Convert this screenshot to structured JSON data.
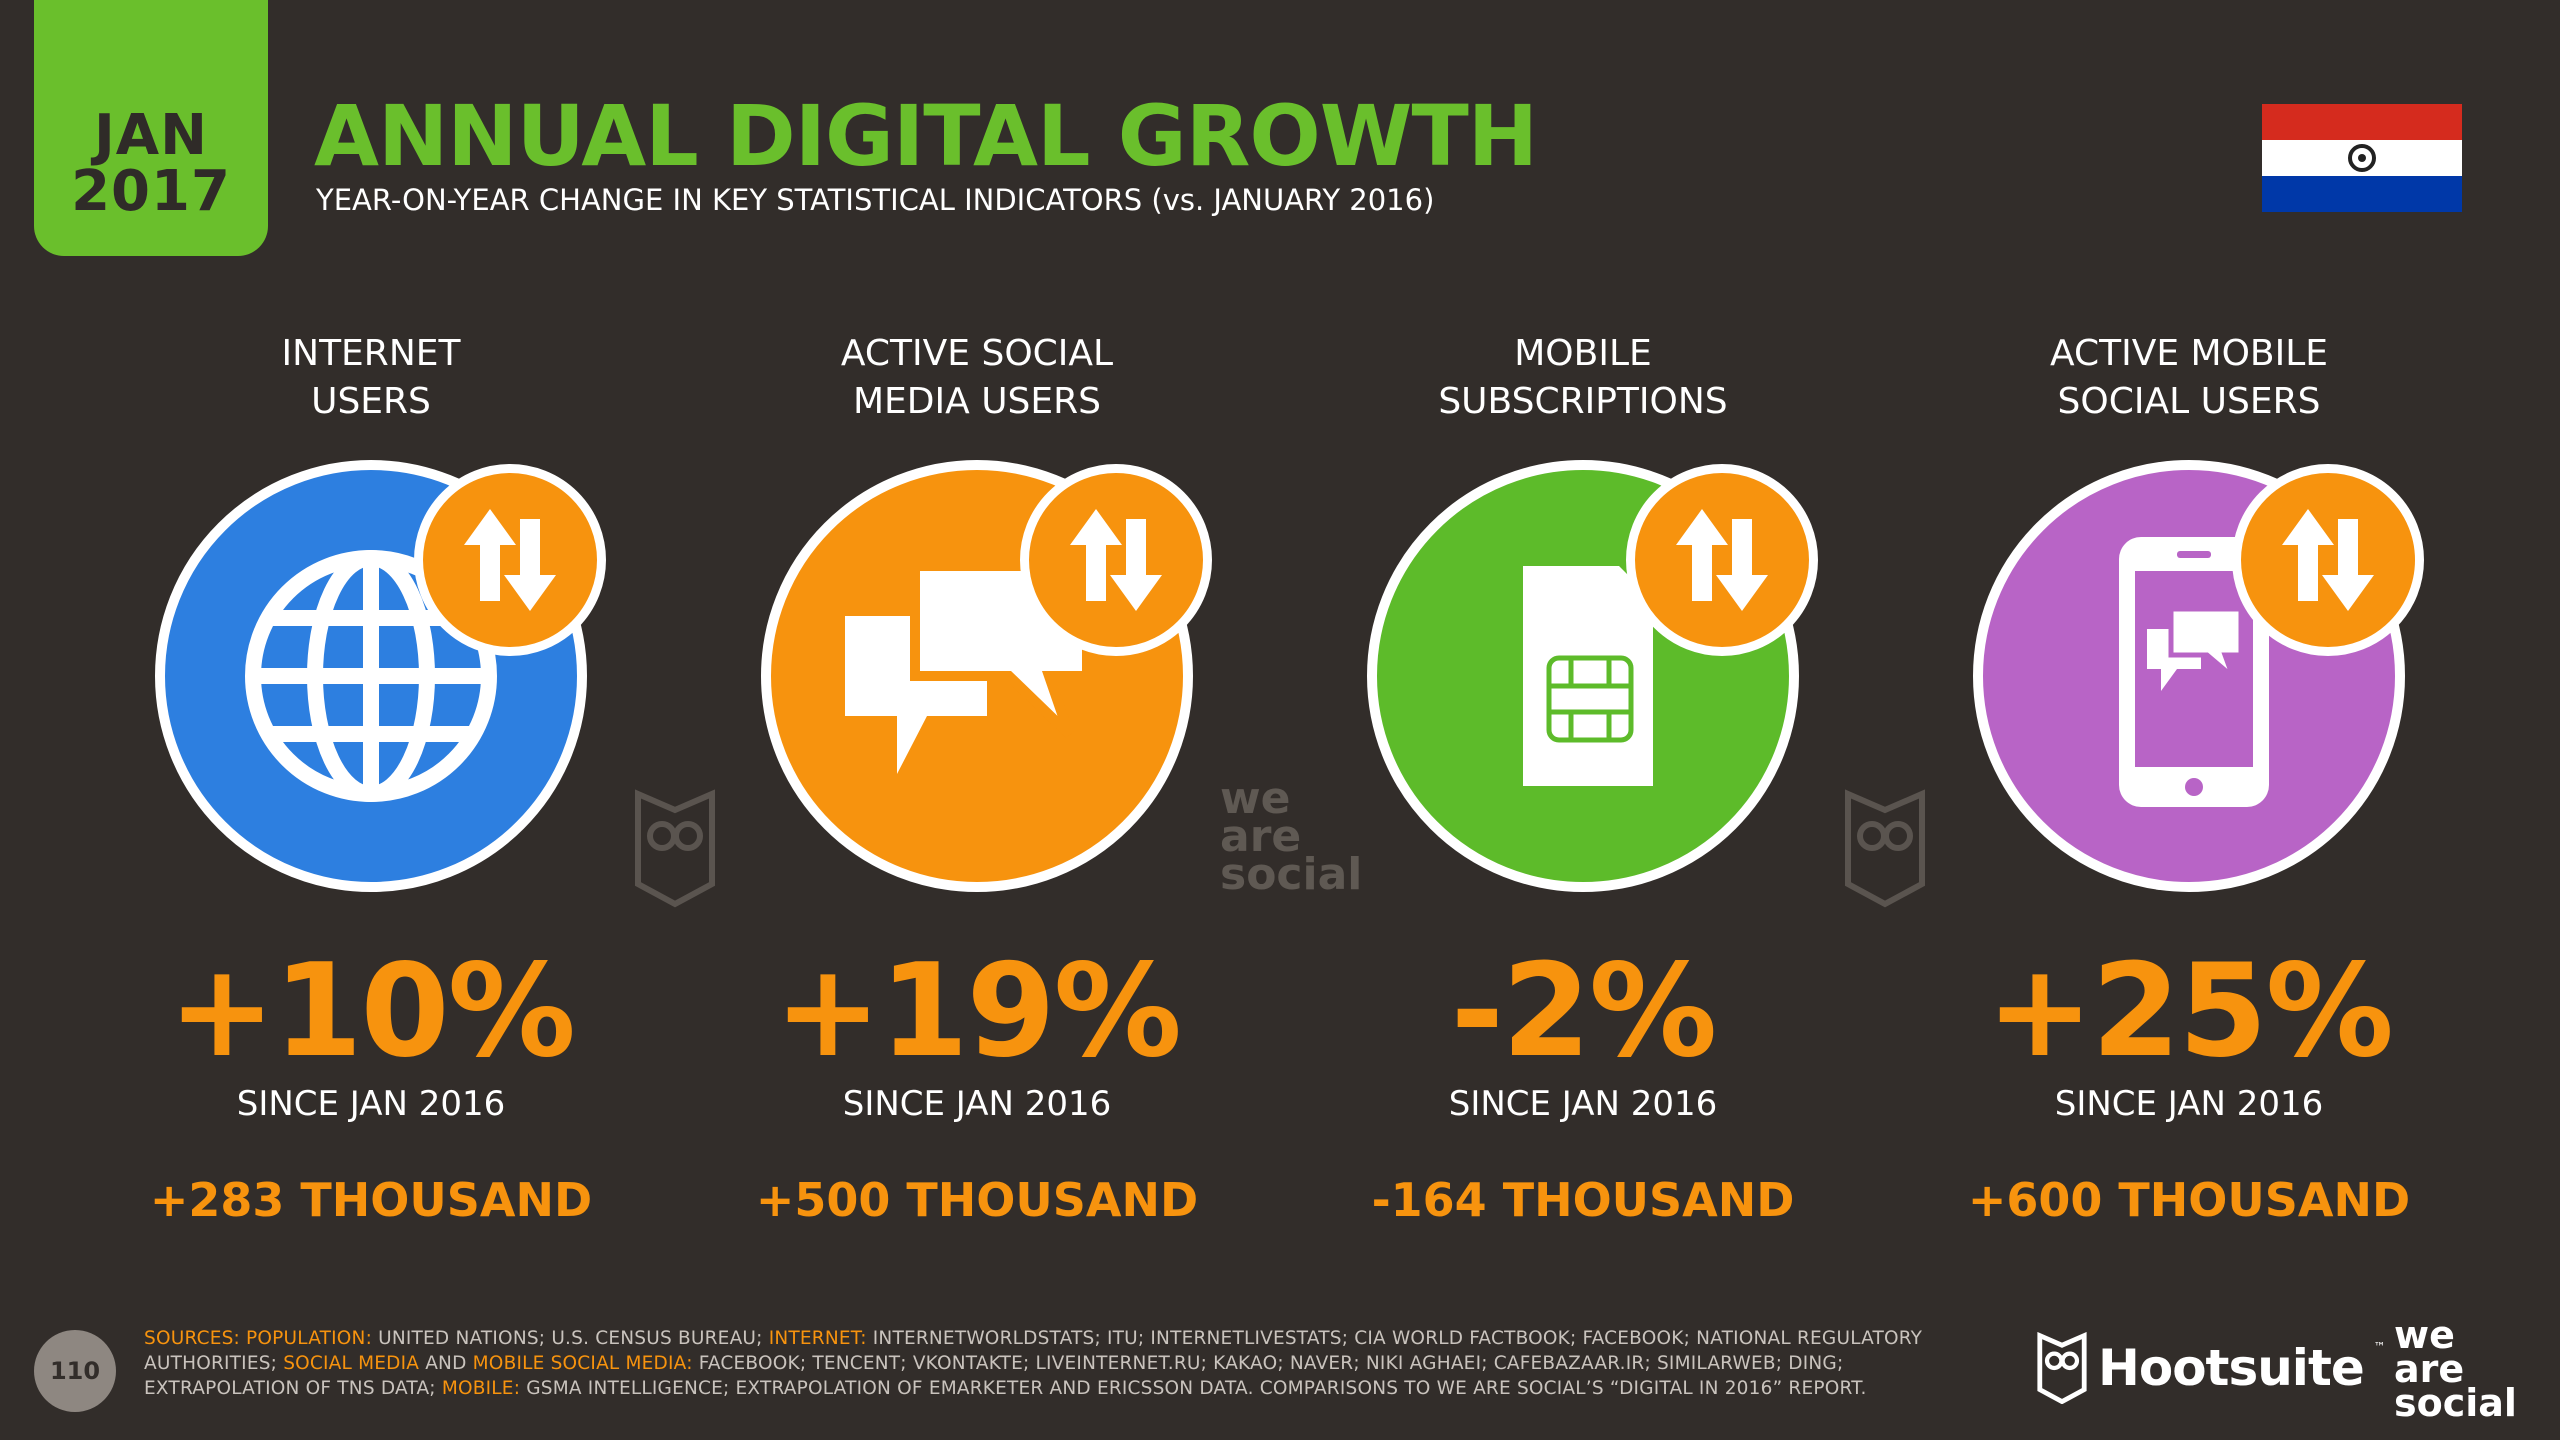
{
  "header": {
    "date_month": "JAN",
    "date_year": "2017",
    "title": "ANNUAL DIGITAL GROWTH",
    "subtitle": "YEAR-ON-YEAR CHANGE IN KEY STATISTICAL INDICATORS (vs. JANUARY 2016)",
    "flag": {
      "country": "Paraguay",
      "colors": [
        "#d52b1e",
        "#ffffff",
        "#0038a8"
      ]
    }
  },
  "stats": [
    {
      "label_line1": "INTERNET",
      "label_line2": "USERS",
      "icon": "globe-icon",
      "color": "#2d7fe0",
      "percent_change": "+10%",
      "since": "SINCE JAN 2016",
      "absolute_change": "+283 THOUSAND"
    },
    {
      "label_line1": "ACTIVE SOCIAL",
      "label_line2": "MEDIA USERS",
      "icon": "speech-bubbles-icon",
      "color": "#f7930e",
      "percent_change": "+19%",
      "since": "SINCE JAN 2016",
      "absolute_change": "+500 THOUSAND"
    },
    {
      "label_line1": "MOBILE",
      "label_line2": "SUBSCRIPTIONS",
      "icon": "sim-card-icon",
      "color": "#5dbb2a",
      "percent_change": "-2%",
      "since": "SINCE JAN 2016",
      "absolute_change": "-164 THOUSAND"
    },
    {
      "label_line1": "ACTIVE MOBILE",
      "label_line2": "SOCIAL USERS",
      "icon": "smartphone-chat-icon",
      "color": "#b864c6",
      "percent_change": "+25%",
      "since": "SINCE JAN 2016",
      "absolute_change": "+600 THOUSAND"
    }
  ],
  "watermark": {
    "l1": "we",
    "l2": "are",
    "l3": "social"
  },
  "footer": {
    "page_number": "110",
    "sources": [
      {
        "t": "SOURCES: ",
        "hl": true
      },
      {
        "t": "POPULATION: ",
        "hl": true
      },
      {
        "t": "UNITED NATIONS; U.S. CENSUS BUREAU; ",
        "hl": false
      },
      {
        "t": "INTERNET: ",
        "hl": true
      },
      {
        "t": "INTERNETWORLDSTATS; ITU; INTERNETLIVESTATS; CIA WORLD FACTBOOK; FACEBOOK; NATIONAL REGULATORY AUTHORITIES; ",
        "hl": false
      },
      {
        "t": "SOCIAL MEDIA",
        "hl": true
      },
      {
        "t": " AND ",
        "hl": false
      },
      {
        "t": "MOBILE SOCIAL MEDIA: ",
        "hl": true
      },
      {
        "t": "FACEBOOK; TENCENT; VKONTAKTE; LIVEINTERNET.RU; KAKAO; NAVER; NIKI AGHAEI; CAFEBAZAAR.IR; SIMILARWEB; DING; EXTRAPOLATION OF TNS DATA; ",
        "hl": false
      },
      {
        "t": "MOBILE: ",
        "hl": true
      },
      {
        "t": "GSMA INTELLIGENCE; EXTRAPOLATION OF EMARKETER AND ERICSSON DATA. COMPARISONS TO WE ARE SOCIAL’S “DIGITAL IN 2016” REPORT.",
        "hl": false
      }
    ],
    "hootsuite_name": "Hootsuite",
    "hootsuite_tm": "™",
    "was_l1": "we",
    "was_l2": "are",
    "was_l3": "social"
  }
}
